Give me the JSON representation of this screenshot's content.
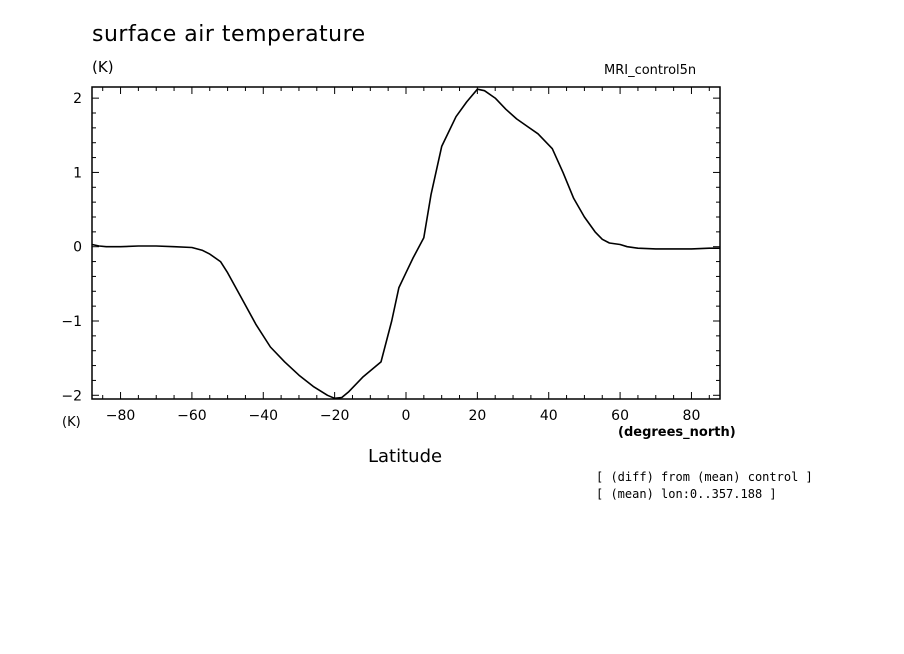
{
  "chart_data": {
    "type": "line",
    "title": "surface air temperature",
    "ylabel": "(K)",
    "ylabel_bottom": "(K)",
    "xlabel": "Latitude",
    "xunit": "(degrees_north)",
    "run_label": "MRI_control5n",
    "notes": [
      "[ (diff) from (mean) control ]",
      "[ (mean) lon:0..357.188 ]"
    ],
    "xlim": [
      -88,
      88
    ],
    "ylim": [
      -2.05,
      2.15
    ],
    "xticks": [
      -80,
      -60,
      -40,
      -20,
      0,
      20,
      40,
      60,
      80
    ],
    "xtick_labels": [
      "-80",
      "-60",
      "-40",
      "-20",
      "0",
      "20",
      "40",
      "60",
      "80"
    ],
    "yticks": [
      -2,
      -1,
      0,
      1,
      2
    ],
    "ytick_labels": [
      "-2",
      "-1",
      "0",
      "1",
      "2"
    ],
    "grid": false,
    "series": [
      {
        "x": [
          -88,
          -86,
          -84,
          -80,
          -75,
          -70,
          -65,
          -60,
          -57,
          -55,
          -52,
          -50,
          -46,
          -42,
          -38,
          -34,
          -30,
          -26,
          -22,
          -20,
          -18,
          -16,
          -12,
          -7,
          -4,
          -2,
          0,
          2,
          5,
          7,
          10,
          14,
          17,
          20,
          22,
          25,
          28,
          31,
          34,
          37,
          41,
          44,
          47,
          50,
          53,
          55,
          57,
          60,
          62,
          65,
          70,
          75,
          80,
          85,
          88
        ],
        "y": [
          0.03,
          0.01,
          0.0,
          0.0,
          0.01,
          0.01,
          0.0,
          -0.01,
          -0.05,
          -0.1,
          -0.2,
          -0.35,
          -0.7,
          -1.05,
          -1.35,
          -1.55,
          -1.73,
          -1.88,
          -2.0,
          -2.04,
          -2.03,
          -1.95,
          -1.75,
          -1.55,
          -1.0,
          -0.55,
          -0.35,
          -0.15,
          0.12,
          0.7,
          1.35,
          1.75,
          1.95,
          2.12,
          2.1,
          2.0,
          1.85,
          1.72,
          1.62,
          1.52,
          1.32,
          1.0,
          0.65,
          0.4,
          0.2,
          0.1,
          0.05,
          0.03,
          0.0,
          -0.02,
          -0.03,
          -0.03,
          -0.03,
          -0.02,
          -0.02
        ]
      }
    ]
  }
}
